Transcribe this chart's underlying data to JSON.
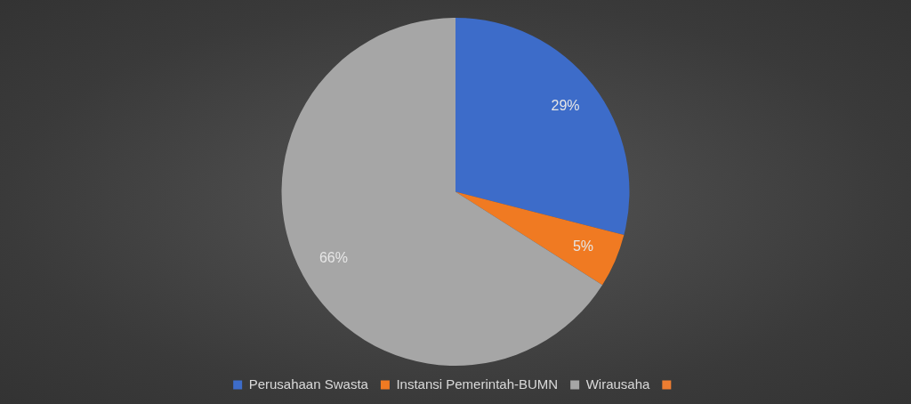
{
  "chart_data": {
    "type": "pie",
    "categories": [
      "Perusahaan Swasta",
      "Instansi Pemerintah-BUMN",
      "Wirausaha",
      null
    ],
    "values": [
      29,
      5,
      66,
      0
    ],
    "colors": [
      "#3d6cc9",
      "#f07a22",
      "#a6a6a6",
      "#ed7d31"
    ],
    "value_labels": [
      "29%",
      "5%",
      "66%",
      null
    ],
    "legend": "bottom"
  }
}
